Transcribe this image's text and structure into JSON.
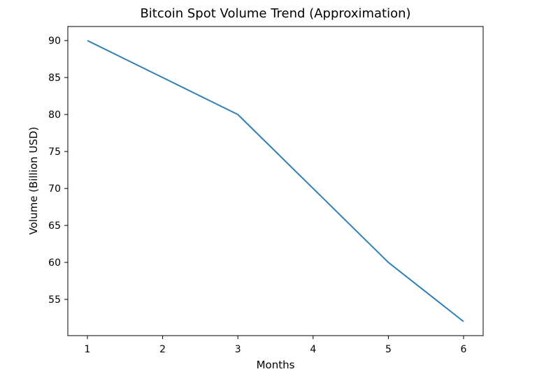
{
  "chart_data": {
    "type": "line",
    "title": "Bitcoin Spot Volume Trend (Approximation)",
    "xlabel": "Months",
    "ylabel": "Volume (Billion USD)",
    "x": [
      1,
      2,
      3,
      4,
      5,
      6
    ],
    "series": [
      {
        "values": [
          90,
          85,
          80,
          70,
          60,
          52
        ],
        "color": "#2f7fb6"
      }
    ],
    "xticks": [
      "1",
      "2",
      "3",
      "4",
      "5",
      "6"
    ],
    "yticks": [
      "55",
      "60",
      "65",
      "70",
      "75",
      "80",
      "85",
      "90"
    ],
    "xlim": [
      0.74,
      6.26
    ],
    "ylim": [
      50.1,
      91.9
    ],
    "grid": false
  }
}
